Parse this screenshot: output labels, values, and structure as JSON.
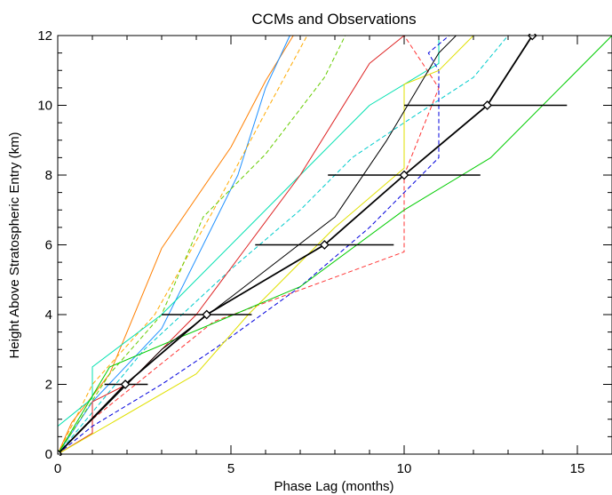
{
  "chart_data": {
    "type": "line",
    "title": "CCMs and Observations",
    "xlabel": "Phase Lag (months)",
    "ylabel": "Height Above Stratospheric Entry (km)",
    "xlim": [
      0,
      16
    ],
    "ylim": [
      0,
      12
    ],
    "xticks": [
      0,
      5,
      10,
      15
    ],
    "yticks": [
      0,
      2,
      4,
      6,
      8,
      10,
      12
    ],
    "grid": false,
    "series": [
      {
        "color": "#ff7f00",
        "dash": false,
        "x": [
          0,
          0.4,
          1.5,
          3.0,
          5.0,
          6.0,
          6.8
        ],
        "y": [
          0,
          0.9,
          2.3,
          5.9,
          8.8,
          10.7,
          12
        ]
      },
      {
        "color": "#1e90ff",
        "dash": false,
        "x": [
          0,
          1.0,
          3.0,
          5.2,
          6.0,
          6.7
        ],
        "y": [
          0,
          1.5,
          3.6,
          8.0,
          10.5,
          12
        ]
      },
      {
        "color": "#ffaa00",
        "dash": true,
        "x": [
          0,
          1.0,
          2.8,
          4.5,
          6.0,
          7.2
        ],
        "y": [
          0,
          2.0,
          4.0,
          7.0,
          9.8,
          12
        ]
      },
      {
        "color": "#66cc00",
        "dash": true,
        "x": [
          0,
          1.5,
          3.0,
          4.2,
          6.0,
          7.7,
          8.3
        ],
        "y": [
          0,
          2.3,
          4.0,
          6.8,
          8.6,
          10.8,
          12
        ]
      },
      {
        "color": "#00cccc",
        "dash": true,
        "x": [
          0,
          2.5,
          5.0,
          7.0,
          8.5,
          10.0,
          12.0,
          13.0
        ],
        "y": [
          0,
          3.0,
          5.3,
          7.0,
          8.5,
          9.5,
          10.8,
          12
        ]
      },
      {
        "color": "#00e0b0",
        "dash": false,
        "x": [
          0,
          1.0,
          1.0,
          3.0,
          7.0,
          9.0,
          11.0,
          11.0,
          11.2
        ],
        "y": [
          0.8,
          1.6,
          2.5,
          4.0,
          8.0,
          10.0,
          11.2,
          12,
          12
        ]
      },
      {
        "color": "#dd2222",
        "dash": false,
        "x": [
          0,
          1.0,
          1.0,
          2.0,
          3.0,
          4.0,
          5.5,
          7.0,
          9.0,
          10.0
        ],
        "y": [
          0,
          0.6,
          1.5,
          2.0,
          3.0,
          4.0,
          6.0,
          8.0,
          11.2,
          12
        ]
      },
      {
        "color": "#ff3333",
        "dash": true,
        "x": [
          0,
          1.0,
          4.5,
          10.0,
          10.0,
          11.0,
          10.0
        ],
        "y": [
          0,
          1.0,
          3.8,
          5.8,
          8.0,
          10.5,
          12
        ]
      },
      {
        "color": "#0000dd",
        "dash": true,
        "x": [
          0,
          1.0,
          3.0,
          4.5,
          7.0,
          9.0,
          11.0,
          11.0,
          10.7,
          11.3
        ],
        "y": [
          0,
          0.8,
          2.0,
          3.0,
          4.8,
          6.5,
          8.5,
          11.0,
          11.5,
          12
        ]
      },
      {
        "color": "#e0e000",
        "dash": false,
        "x": [
          0,
          4.0,
          5.5,
          8.0,
          10.0,
          10.0,
          11.0,
          12.0
        ],
        "y": [
          0,
          2.3,
          4.0,
          6.5,
          8.2,
          10.6,
          11.0,
          12
        ]
      },
      {
        "color": "#00cc00",
        "dash": false,
        "x": [
          0,
          1.5,
          7.0,
          10.0,
          12.5,
          16.0
        ],
        "y": [
          0,
          2.5,
          4.8,
          7.0,
          8.5,
          12
        ]
      },
      {
        "color": "#000000",
        "dash": false,
        "width": 1,
        "x": [
          0,
          1.0,
          3.0,
          5.0,
          8.0,
          9.5,
          11.0,
          11.5
        ],
        "y": [
          0,
          1.0,
          3.0,
          4.5,
          6.8,
          9.0,
          11.5,
          12
        ]
      },
      {
        "color": "#000000",
        "dash": false,
        "width": 1.8,
        "observations": true,
        "x": [
          0,
          1.95,
          4.3,
          7.7,
          10.0,
          12.4,
          13.7
        ],
        "y": [
          0,
          2,
          4,
          6,
          8,
          10,
          12
        ],
        "xerr_low": [
          null,
          1.35,
          3.0,
          5.7,
          7.8,
          10.0,
          null
        ],
        "xerr_high": [
          null,
          2.6,
          5.6,
          9.7,
          12.2,
          14.7,
          null
        ]
      }
    ]
  }
}
